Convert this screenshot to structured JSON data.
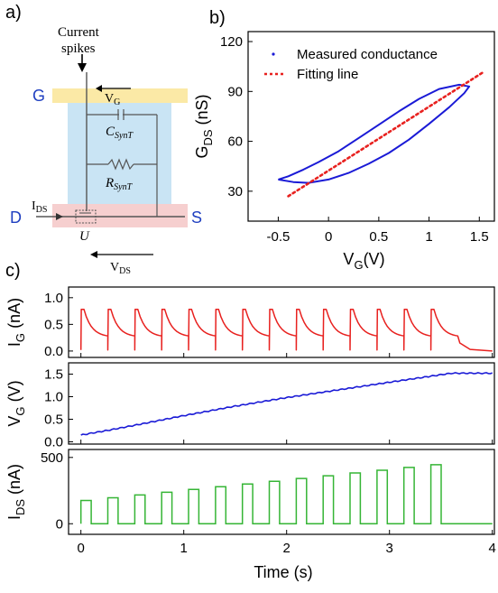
{
  "panels": {
    "a": "a)",
    "b": "b)",
    "c": "c)"
  },
  "circuit": {
    "spikes_line1": "Current",
    "spikes_line2": "spikes",
    "vg": "V",
    "vg_sub": "G",
    "vds": "V",
    "vds_sub": "DS",
    "ids": "I",
    "ids_sub": "DS",
    "cap": "C",
    "cap_sub": "SynT",
    "res": "R",
    "res_sub": "SynT",
    "u": "U",
    "node_g": "G",
    "node_d": "D",
    "node_s": "S",
    "colors": {
      "gate_band": "#fbe9a6",
      "channel_band": "#c9e4f4",
      "drain_band": "#f6cfcf",
      "node_label": "#1f3fc0"
    }
  },
  "chart_data": [
    {
      "id": "b",
      "type": "scatter",
      "xlabel": "V",
      "xlabel_sub": "G",
      "xlabel_tail": "(V)",
      "ylabel": "G",
      "ylabel_sub": "DS",
      "ylabel_tail": " (nS)",
      "xlim": [
        -0.8,
        1.65
      ],
      "ylim": [
        12,
        126
      ],
      "xticks": [
        -0.5,
        0,
        0.5,
        1,
        1.5
      ],
      "xtick_labels": [
        "-0.5",
        "0",
        "0.5",
        "1",
        "1.5"
      ],
      "yticks": [
        30,
        60,
        90,
        120
      ],
      "ytick_labels": [
        "30",
        "60",
        "90",
        "120"
      ],
      "legend": {
        "position": "top-left",
        "entries": [
          {
            "label": "Measured conductance",
            "color": "#1a1ad6",
            "style": "dot"
          },
          {
            "label": "Fitting line",
            "color": "#e8211f",
            "style": "dash"
          }
        ]
      },
      "series": [
        {
          "name": "Measured conductance",
          "color": "#1a1ad6",
          "kind": "hysteresis-loop",
          "x": [
            -0.5,
            -0.35,
            -0.2,
            0.0,
            0.2,
            0.4,
            0.6,
            0.8,
            1.0,
            1.2,
            1.35,
            1.4,
            1.3,
            1.1,
            0.9,
            0.7,
            0.5,
            0.3,
            0.1,
            -0.1,
            -0.25,
            -0.4,
            -0.5
          ],
          "y": [
            37.0,
            35.5,
            35.0,
            37.0,
            41.0,
            46.5,
            53.0,
            61.0,
            70.5,
            80.5,
            89.0,
            93.0,
            94.0,
            91.5,
            85.5,
            78.0,
            70.0,
            62.0,
            54.0,
            47.5,
            43.0,
            39.0,
            37.0
          ]
        },
        {
          "name": "Fitting line",
          "color": "#e8211f",
          "kind": "fit",
          "x": [
            -0.4,
            1.55
          ],
          "y": [
            27.0,
            102.0
          ]
        }
      ]
    },
    {
      "id": "c-ig",
      "type": "line",
      "ylabel": "I",
      "ylabel_sub": "G",
      "ylabel_tail": " (nA)",
      "color": "#e8211f",
      "xlim": [
        -0.12,
        4.02
      ],
      "ylim": [
        -0.12,
        1.2
      ],
      "yticks": [
        0.0,
        0.5,
        1.0
      ],
      "ytick_labels": [
        "0.0",
        "0.5",
        "1.0"
      ],
      "pulse_period_s": 0.2617,
      "pulse_on_s": 0.03,
      "pulse_count": 14,
      "peak": 0.78,
      "decay_floor": 0.26,
      "final_value": 0.0
    },
    {
      "id": "c-vg",
      "type": "line",
      "ylabel": "V",
      "ylabel_sub": "G",
      "ylabel_tail": " (V)",
      "color": "#1a1ad6",
      "xlim": [
        -0.12,
        4.02
      ],
      "ylim": [
        -0.05,
        1.75
      ],
      "yticks": [
        0.0,
        0.5,
        1.0,
        1.5
      ],
      "ytick_labels": [
        "0.0",
        "0.5",
        "1.0",
        "1.5"
      ],
      "x": [
        0.0,
        0.3,
        0.6,
        1.0,
        1.5,
        2.0,
        2.5,
        3.0,
        3.3,
        3.6,
        4.0
      ],
      "y": [
        0.15,
        0.27,
        0.4,
        0.58,
        0.79,
        0.98,
        1.15,
        1.32,
        1.42,
        1.52,
        1.52
      ]
    },
    {
      "id": "c-ids",
      "type": "line",
      "ylabel": "I",
      "ylabel_sub": "DS",
      "ylabel_tail": " (nA)",
      "xlabel": "Time (s)",
      "color": "#35b535",
      "xlim": [
        -0.12,
        4.02
      ],
      "ylim": [
        -80,
        560
      ],
      "yticks": [
        0,
        500
      ],
      "ytick_labels": [
        "0",
        "500"
      ],
      "xticks": [
        0,
        1,
        2,
        3,
        4
      ],
      "xtick_labels": [
        "0",
        "1",
        "2",
        "3",
        "4"
      ],
      "pulse_period_s": 0.2617,
      "pulse_width_s": 0.1,
      "pulse_count": 14,
      "pulse_start_value": 175,
      "pulse_end_value": 445,
      "baseline": 0
    }
  ]
}
